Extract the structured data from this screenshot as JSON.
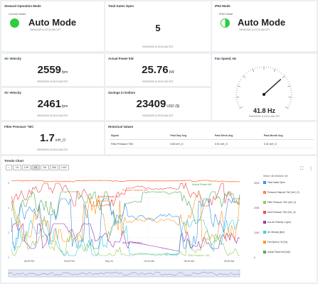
{
  "cards": {
    "steward": {
      "title": "Steward Operation Mode",
      "label": "Current Mode",
      "value": "Auto Mode",
      "timestamp": "09/04/2025 11:07:03 AM CDT",
      "indicator_color": "#2ecc40"
    },
    "gates": {
      "title": "Total Gates Open",
      "value": "5",
      "timestamp": "09/04/2025 11:00:01 AM CDT"
    },
    "ip52": {
      "title": "IP52 Mode",
      "label": "IP52 Mode",
      "value": "Auto Mode",
      "timestamp": "09/04/2025 11:07:00 AM CDT",
      "indicator_color": "#2ecc40"
    },
    "air1": {
      "title": "Air Velocity",
      "value": "2559",
      "unit": "fpm",
      "timestamp": "09/04/2025 11:00:01 AM CDT"
    },
    "power": {
      "title": "Actual Power kW",
      "value": "25.76",
      "unit": "kW",
      "timestamp": "09/04/2025 11:00:01 AM CDT"
    },
    "fan": {
      "title": "Fan Speed, Hz",
      "value": "41.8 Hz",
      "timestamp": "09/04/2025 11:00:01 AM CDT",
      "gauge_fraction": 0.7
    },
    "air2": {
      "title": "Air Velocity",
      "value": "2461",
      "unit": "fpm",
      "timestamp": "09/04/2025 11:00:01 AM CDT"
    },
    "savings": {
      "title": "Savings in Dollars",
      "value": "23409",
      "unit": "USD ($)",
      "timestamp": "09/04/2025 11:00:01 AM CDT"
    },
    "filter": {
      "title": "Filter Pressure \"WC",
      "value": "1.7",
      "unit": "inH_O",
      "timestamp": "09/04/2025 11:00:01 AM CDT"
    }
  },
  "historical": {
    "title": "Historical Values",
    "headers": [
      "Signal",
      "Past Day Avg",
      "Past Week Avg",
      "Past Month Avg"
    ],
    "rows": [
      [
        "Filter Pressure \"WC",
        "0.60 inH_O",
        "0.91 inH_O",
        "0.31 inH_O"
      ]
    ]
  },
  "trends": {
    "title": "Trends Chart",
    "ranges": [
      {
        "label": "1H",
        "active": false
      },
      {
        "label": "12H",
        "active": false
      },
      {
        "label": "1D",
        "active": true
      },
      {
        "label": "5D",
        "active": false
      },
      {
        "label": "30D",
        "active": false
      },
      {
        "label": "LIVE",
        "active": false
      }
    ],
    "legend_title": "Select / All Deselect / All",
    "legend": [
      {
        "label": "Total Gates Open",
        "color": "#1e88e5"
      },
      {
        "label": "Pressure Setpoint \"WC (inH_O)",
        "color": "#ff7043"
      },
      {
        "label": "Filter Pressure \"WC (inH_O)",
        "color": "#8bc34a"
      },
      {
        "label": "Duct Pressure \"WC (inH_O)",
        "color": "#e53935"
      },
      {
        "label": "Aux Air Velocity 1 (fpm)",
        "color": "#8e24aa"
      },
      {
        "label": "Air Velocity (fpm)",
        "color": "#26c6da"
      },
      {
        "label": "Fan Speed, Hz (Hz)",
        "color": "#fb8c00"
      },
      {
        "label": "Actual Power kW (kW)",
        "color": "#43a047"
      }
    ],
    "annotations": [
      "Pressure Setpoint \"WC",
      "Actual Power kW",
      "Duct Pressure \"WC",
      "Fan Speed, Hz",
      "Aux Air Velocity 1",
      "Air Velocity",
      "Filter Pressure \"WC"
    ],
    "x_ticks": [
      "06:00 PM",
      "09:00 PM",
      "Sep 04",
      "03:00 AM",
      "06:00 AM",
      "09:00 AM"
    ],
    "y_left": [
      "6",
      "4",
      "2",
      "0"
    ],
    "y_right": [
      "3000",
      "2000",
      "1000",
      "0"
    ],
    "icons": [
      "zoom-icon",
      "fullscreen-icon",
      "more-icon"
    ]
  },
  "chart_data": {
    "type": "line",
    "x": [
      "06:00 PM",
      "09:00 PM",
      "Sep 04",
      "03:00 AM",
      "06:00 AM",
      "09:00 AM"
    ],
    "series": [
      {
        "name": "Pressure Setpoint \"WC",
        "values": [
          7.2,
          7.2,
          7.2,
          7.2,
          7.2,
          7.2
        ]
      },
      {
        "name": "Actual Power kW",
        "values": [
          4.5,
          5.8,
          3.5,
          3.8,
          6.5,
          7.6
        ]
      },
      {
        "name": "Duct Pressure \"WC",
        "values": [
          6.0,
          5.5,
          6.9,
          6.9,
          6.8,
          6.8
        ]
      },
      {
        "name": "Fan Speed, Hz",
        "values": [
          5.5,
          6.0,
          4.0,
          4.2,
          6.8,
          7.0
        ]
      },
      {
        "name": "Aux Air Velocity 1",
        "values": [
          1800,
          1200,
          700,
          600,
          2000,
          2000
        ]
      },
      {
        "name": "Air Velocity",
        "values": [
          1500,
          1000,
          200,
          200,
          1600,
          1600
        ]
      },
      {
        "name": "Filter Pressure \"WC",
        "values": [
          1.0,
          1.6,
          0.5,
          0.5,
          0.6,
          1.7
        ]
      }
    ]
  }
}
